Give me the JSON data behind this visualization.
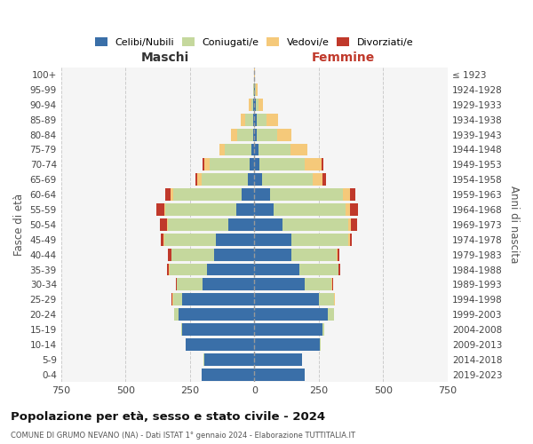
{
  "age_groups": [
    "0-4",
    "5-9",
    "10-14",
    "15-19",
    "20-24",
    "25-29",
    "30-34",
    "35-39",
    "40-44",
    "45-49",
    "50-54",
    "55-59",
    "60-64",
    "65-69",
    "70-74",
    "75-79",
    "80-84",
    "85-89",
    "90-94",
    "95-99",
    "100+"
  ],
  "birth_years": [
    "2019-2023",
    "2014-2018",
    "2009-2013",
    "2004-2008",
    "1999-2003",
    "1994-1998",
    "1989-1993",
    "1984-1988",
    "1979-1983",
    "1974-1978",
    "1969-1973",
    "1964-1968",
    "1959-1963",
    "1954-1958",
    "1949-1953",
    "1944-1948",
    "1939-1943",
    "1934-1938",
    "1929-1933",
    "1924-1928",
    "≤ 1923"
  ],
  "colors": {
    "celibi": "#3a6fa8",
    "coniugati": "#c5d89d",
    "vedovi": "#f5c97a",
    "divorziati": "#c0392b"
  },
  "males": {
    "celibi": [
      205,
      195,
      265,
      280,
      295,
      280,
      200,
      185,
      155,
      150,
      100,
      70,
      50,
      25,
      20,
      10,
      6,
      4,
      3,
      1,
      0
    ],
    "coniugati": [
      0,
      1,
      2,
      5,
      15,
      35,
      100,
      145,
      165,
      200,
      235,
      275,
      265,
      180,
      155,
      105,
      60,
      30,
      8,
      2,
      0
    ],
    "vedovi": [
      0,
      0,
      0,
      0,
      2,
      3,
      0,
      1,
      2,
      3,
      5,
      5,
      10,
      15,
      20,
      20,
      25,
      20,
      10,
      2,
      0
    ],
    "divorziati": [
      0,
      0,
      0,
      0,
      0,
      2,
      3,
      8,
      12,
      10,
      25,
      30,
      20,
      8,
      5,
      2,
      0,
      0,
      0,
      0,
      0
    ]
  },
  "females": {
    "celibi": [
      195,
      185,
      255,
      265,
      285,
      250,
      195,
      175,
      145,
      145,
      110,
      75,
      60,
      30,
      20,
      15,
      10,
      8,
      5,
      2,
      0
    ],
    "coniugati": [
      0,
      1,
      3,
      5,
      25,
      60,
      105,
      150,
      175,
      220,
      255,
      280,
      285,
      195,
      175,
      125,
      80,
      40,
      10,
      3,
      0
    ],
    "vedovi": [
      0,
      0,
      0,
      0,
      0,
      1,
      1,
      2,
      3,
      5,
      10,
      15,
      25,
      40,
      65,
      65,
      55,
      45,
      20,
      8,
      2
    ],
    "divorziati": [
      0,
      0,
      0,
      0,
      0,
      1,
      3,
      5,
      8,
      8,
      25,
      32,
      22,
      12,
      8,
      2,
      0,
      0,
      0,
      0,
      0
    ]
  },
  "title": "Popolazione per età, sesso e stato civile - 2024",
  "subtitle": "COMUNE DI GRUMO NEVANO (NA) - Dati ISTAT 1° gennaio 2024 - Elaborazione TUTTITALIA.IT",
  "xlabel_left": "Maschi",
  "xlabel_right": "Femmine",
  "ylabel_left": "Fasce di età",
  "ylabel_right": "Anni di nascita",
  "xlim": 750,
  "bg_color": "#f5f5f5",
  "grid_color": "#cccccc"
}
